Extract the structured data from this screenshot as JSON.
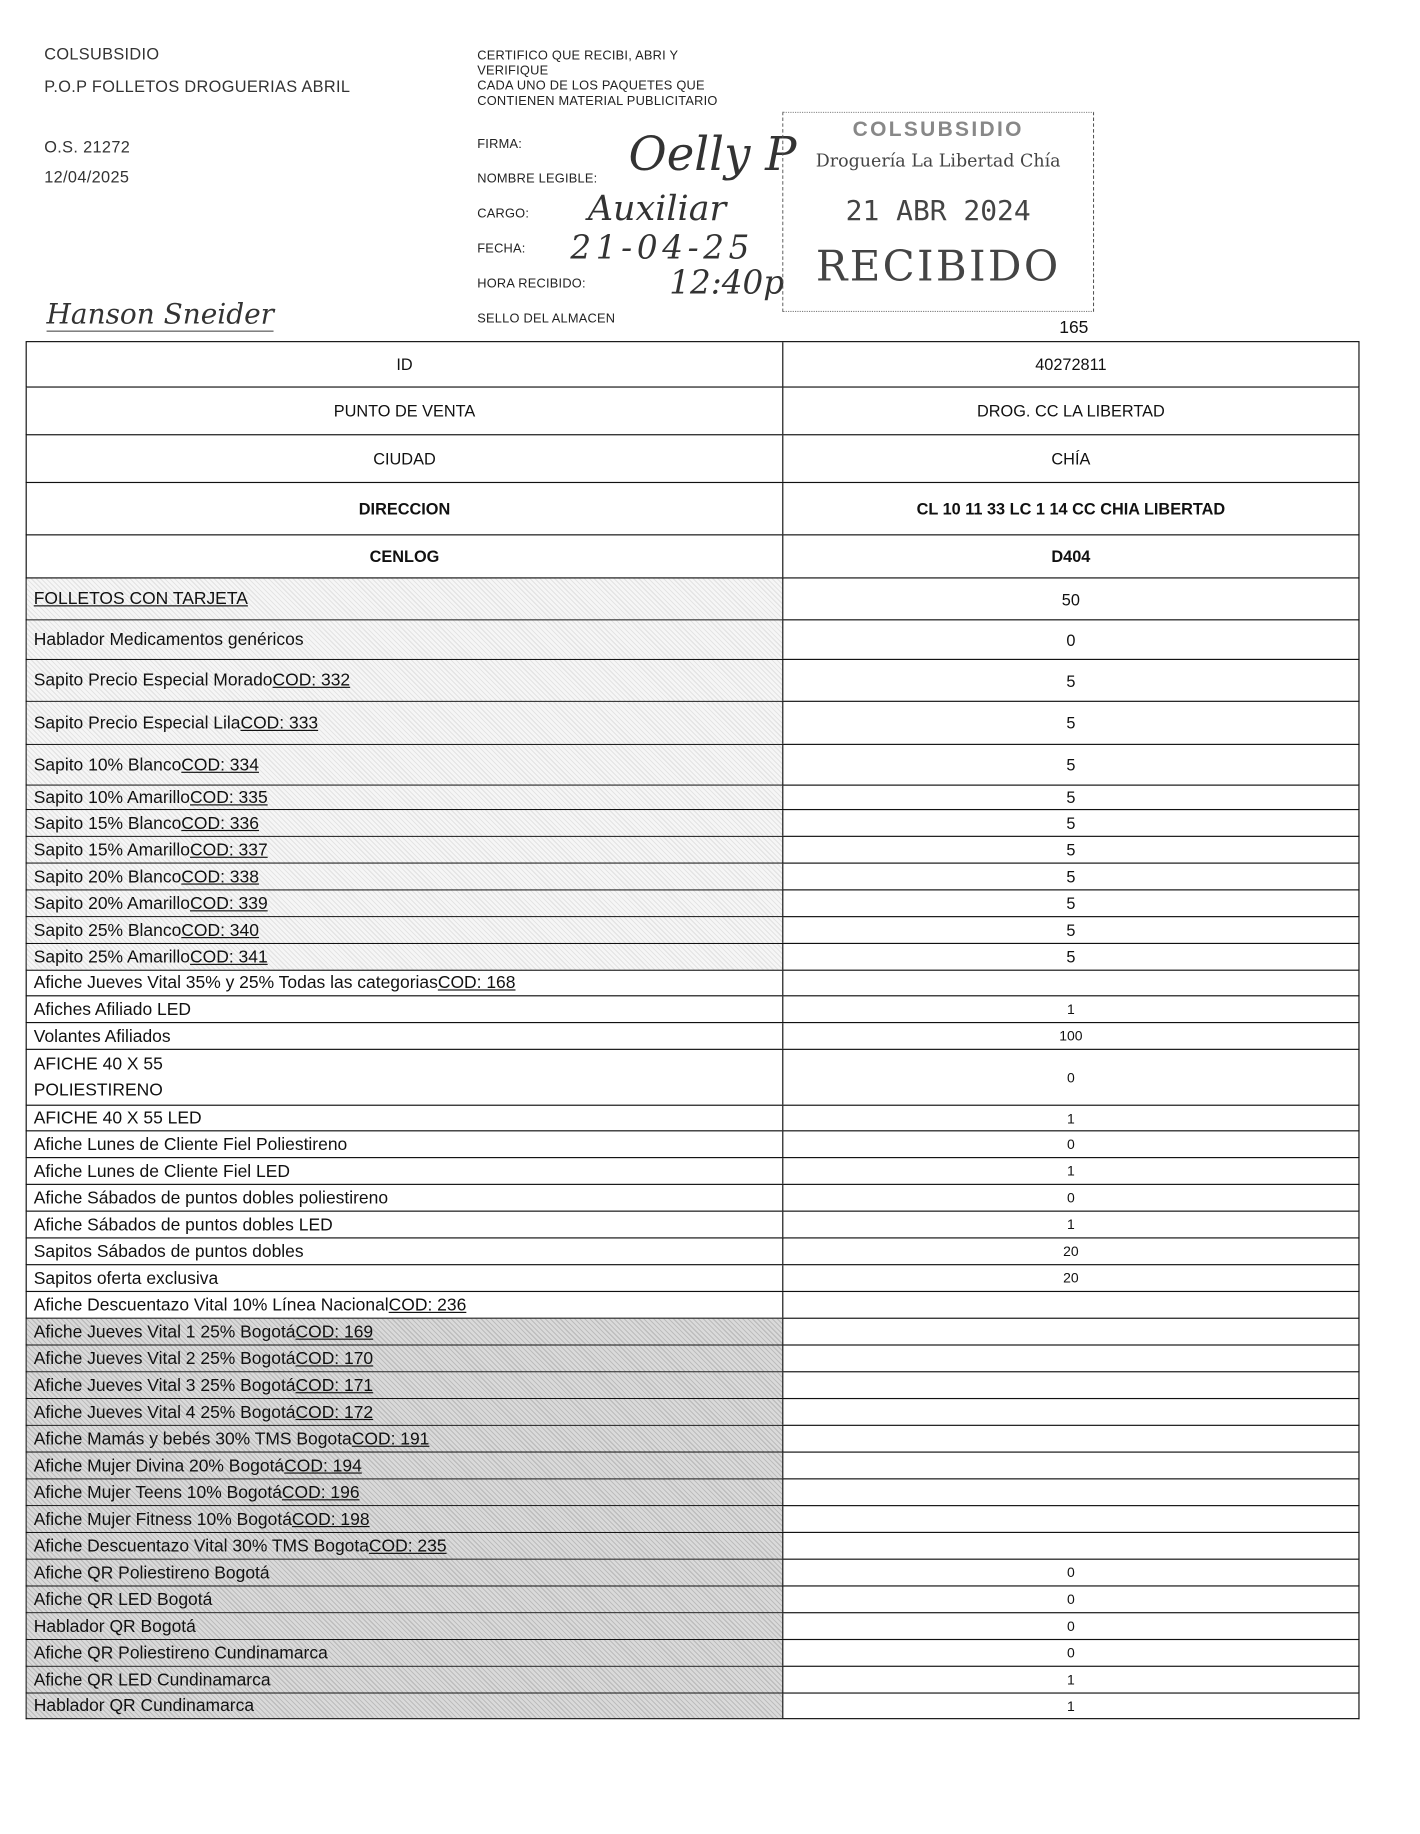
{
  "header": {
    "org": "COLSUBSIDIO",
    "title": "P.O.P FOLLETOS DROGUERIAS ABRIL",
    "os": "O.S. 21272",
    "date": "12/04/2025",
    "certify": [
      "CERTIFICO QUE RECIBI, ABRI Y",
      "VERIFIQUE",
      "CADA  UNO DE LOS PAQUETES QUE",
      "CONTIENEN MATERIAL PUBLICITARIO"
    ],
    "fields": {
      "firma": "FIRMA:",
      "nombre": "NOMBRE LEGIBLE:",
      "cargo": "CARGO:",
      "fecha": "FECHA:",
      "hora": "HORA RECIBIDO:",
      "sello": "SELLO DEL ALMACEN"
    },
    "handwritten": {
      "nombre": "Oelly P",
      "cargo": "Auxiliar",
      "fecha": "21-04-25",
      "hora": "12:40p",
      "signature": "Hanson Sneider"
    },
    "stamp": {
      "brand": "COLSUBSIDIO",
      "store": "Droguería La Libertad Chía",
      "date": "21 ABR 2024",
      "status": "RECIBIDO"
    },
    "page_number": "165"
  },
  "info_rows": [
    {
      "label": "ID",
      "value": "40272811"
    },
    {
      "label": "PUNTO DE VENTA",
      "value": "DROG. CC LA LIBERTAD"
    },
    {
      "label": "CIUDAD",
      "value": "CHÍA"
    },
    {
      "label": "DIRECCION",
      "value": "CL 10 11 33 LC 1 14 CC CHIA LIBERTAD"
    },
    {
      "label": "CENLOG",
      "value": "D404"
    }
  ],
  "items": [
    {
      "label": "",
      "code": "FOLLETOS CON TARJETA",
      "value": "50"
    },
    {
      "label": "Hablador Medicamentos genéricos",
      "code": "",
      "value": "0"
    },
    {
      "label": "Sapito Precio Especial Morado ",
      "code": "COD: 332",
      "value": "5"
    },
    {
      "label": "Sapito Precio Especial Lila ",
      "code": "COD: 333",
      "value": "5"
    },
    {
      "label": "Sapito 10% Blanco ",
      "code": "COD: 334",
      "value": "5"
    },
    {
      "label": "Sapito 10% Amarillo ",
      "code": "COD: 335",
      "value": "5"
    },
    {
      "label": "Sapito 15% Blanco ",
      "code": "COD: 336",
      "value": "5"
    },
    {
      "label": "Sapito 15% Amarillo ",
      "code": "COD: 337",
      "value": "5"
    },
    {
      "label": "Sapito 20% Blanco ",
      "code": "COD: 338",
      "value": "5"
    },
    {
      "label": "Sapito 20% Amarillo ",
      "code": "COD: 339",
      "value": "5"
    },
    {
      "label": "Sapito 25% Blanco ",
      "code": "COD: 340",
      "value": "5"
    },
    {
      "label": "Sapito 25% Amarillo ",
      "code": "COD: 341",
      "value": "5"
    },
    {
      "label": "Afiche Jueves Vital 35% y 25% Todas las categorias ",
      "code": "COD: 168",
      "value": ""
    },
    {
      "label": "Afiches Afiliado LED",
      "code": "",
      "value": "1"
    },
    {
      "label": "Volantes Afiliados",
      "code": "",
      "value": "100"
    },
    {
      "label": "AFICHE 40 X 55\nPOLIESTIRENO",
      "code": "",
      "value": "0"
    },
    {
      "label": "AFICHE 40 X 55 LED",
      "code": "",
      "value": "1"
    },
    {
      "label": "Afiche Lunes de Cliente Fiel Poliestireno",
      "code": "",
      "value": "0"
    },
    {
      "label": "Afiche Lunes de Cliente Fiel LED",
      "code": "",
      "value": "1"
    },
    {
      "label": "Afiche Sábados de puntos dobles poliestireno",
      "code": "",
      "value": "0"
    },
    {
      "label": "Afiche Sábados de puntos dobles LED",
      "code": "",
      "value": "1"
    },
    {
      "label": "Sapitos Sábados de puntos dobles",
      "code": "",
      "value": "20"
    },
    {
      "label": "Sapitos oferta exclusiva",
      "code": "",
      "value": "20"
    },
    {
      "label": "Afiche Descuentazo Vital 10% Línea Nacional ",
      "code": "COD: 236",
      "value": ""
    },
    {
      "label": "Afiche Jueves Vital 1 25% Bogotá ",
      "code": "COD: 169",
      "value": ""
    },
    {
      "label": "Afiche Jueves Vital 2 25% Bogotá ",
      "code": "COD: 170",
      "value": ""
    },
    {
      "label": "Afiche Jueves Vital 3 25% Bogotá ",
      "code": "COD: 171",
      "value": ""
    },
    {
      "label": "Afiche Jueves Vital 4 25% Bogotá ",
      "code": "COD: 172",
      "value": ""
    },
    {
      "label": "Afiche Mamás y bebés 30% TMS Bogota ",
      "code": "COD: 191",
      "value": ""
    },
    {
      "label": "Afiche Mujer Divina 20% Bogotá ",
      "code": "COD: 194",
      "value": ""
    },
    {
      "label": "Afiche Mujer Teens 10% Bogotá ",
      "code": "COD: 196",
      "value": ""
    },
    {
      "label": "Afiche Mujer Fitness 10% Bogotá ",
      "code": "COD: 198",
      "value": ""
    },
    {
      "label": "Afiche Descuentazo Vital 30% TMS Bogota ",
      "code": "COD: 235",
      "value": ""
    },
    {
      "label": "Afiche QR Poliestireno Bogotá",
      "code": "",
      "value": "0"
    },
    {
      "label": "Afiche QR LED Bogotá",
      "code": "",
      "value": "0"
    },
    {
      "label": "Hablador QR Bogotá",
      "code": "",
      "value": "0"
    },
    {
      "label": "Afiche QR Poliestireno Cundinamarca",
      "code": "",
      "value": "0"
    },
    {
      "label": "Afiche QR LED Cundinamarca",
      "code": "",
      "value": "1"
    },
    {
      "label": "Hablador QR Cundinamarca",
      "code": "",
      "value": "1"
    }
  ]
}
